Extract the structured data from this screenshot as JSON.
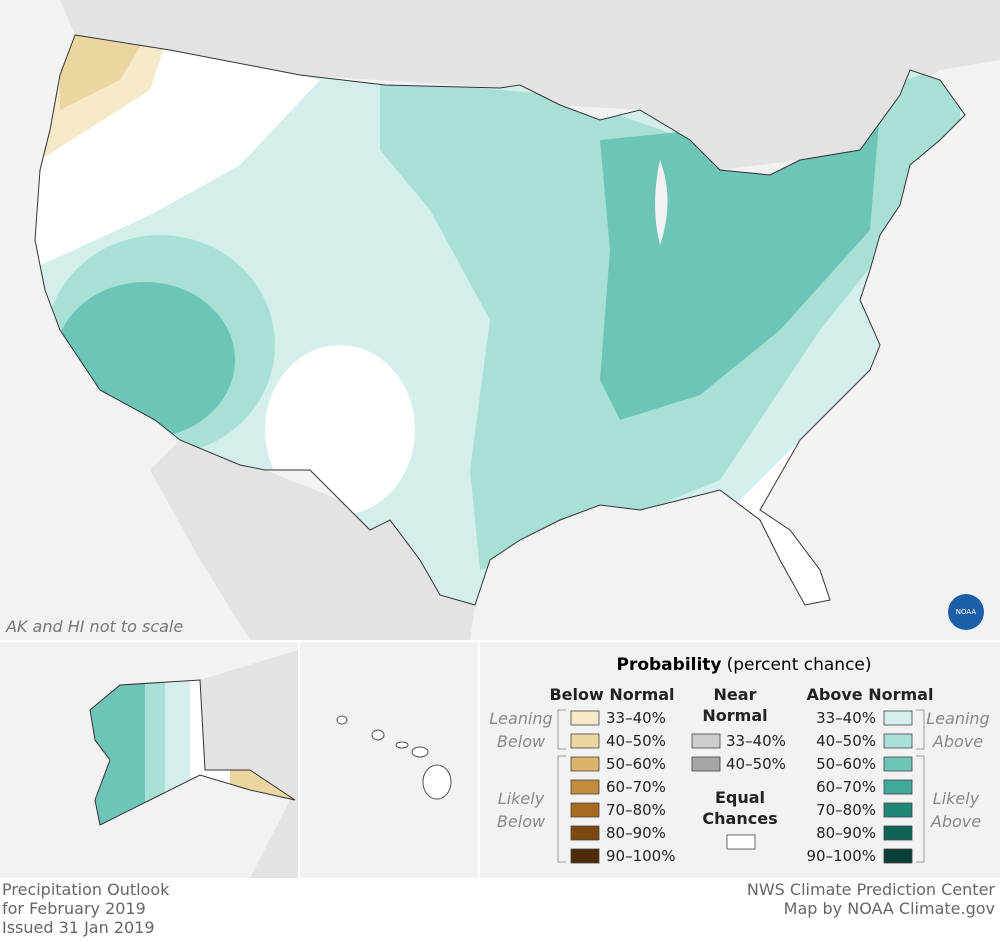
{
  "map": {
    "note": "AK and HI not to scale",
    "logo": "NOAA"
  },
  "legend": {
    "title": "Probability",
    "title_note": "(percent chance)",
    "below": {
      "heading": "Below Normal",
      "leaning": [
        "Leaning",
        "Below"
      ],
      "likely": [
        "Likely",
        "Below"
      ],
      "items": [
        {
          "label": "33–40%",
          "color": "#f5e9c9"
        },
        {
          "label": "40–50%",
          "color": "#ebd6a2"
        },
        {
          "label": "50–60%",
          "color": "#d9b46a"
        },
        {
          "label": "60–70%",
          "color": "#c48d3e"
        },
        {
          "label": "70–80%",
          "color": "#a66a1f"
        },
        {
          "label": "80–90%",
          "color": "#7b4810"
        },
        {
          "label": "90–100%",
          "color": "#4e2c06"
        }
      ]
    },
    "near": {
      "heading": [
        "Near",
        "Normal"
      ],
      "items": [
        {
          "label": "33–40%",
          "color": "#cccccc"
        },
        {
          "label": "40–50%",
          "color": "#a6a6a6"
        }
      ]
    },
    "equal": {
      "heading": [
        "Equal",
        "Chances"
      ],
      "color": "#ffffff"
    },
    "above": {
      "heading": "Above Normal",
      "leaning": [
        "Leaning",
        "Above"
      ],
      "likely": [
        "Likely",
        "Above"
      ],
      "items": [
        {
          "label": "33–40%",
          "color": "#d4efeb"
        },
        {
          "label": "40–50%",
          "color": "#a8e0d6"
        },
        {
          "label": "50–60%",
          "color": "#6cc5b6"
        },
        {
          "label": "60–70%",
          "color": "#3fa898"
        },
        {
          "label": "70–80%",
          "color": "#1f8576"
        },
        {
          "label": "80–90%",
          "color": "#0f6356"
        },
        {
          "label": "90–100%",
          "color": "#073f36"
        }
      ]
    }
  },
  "footer": {
    "left": [
      "Precipitation Outlook",
      "for February 2019",
      "Issued 31 Jan 2019"
    ],
    "right": [
      "NWS Climate Prediction Center",
      "Map by NOAA Climate.gov"
    ]
  }
}
